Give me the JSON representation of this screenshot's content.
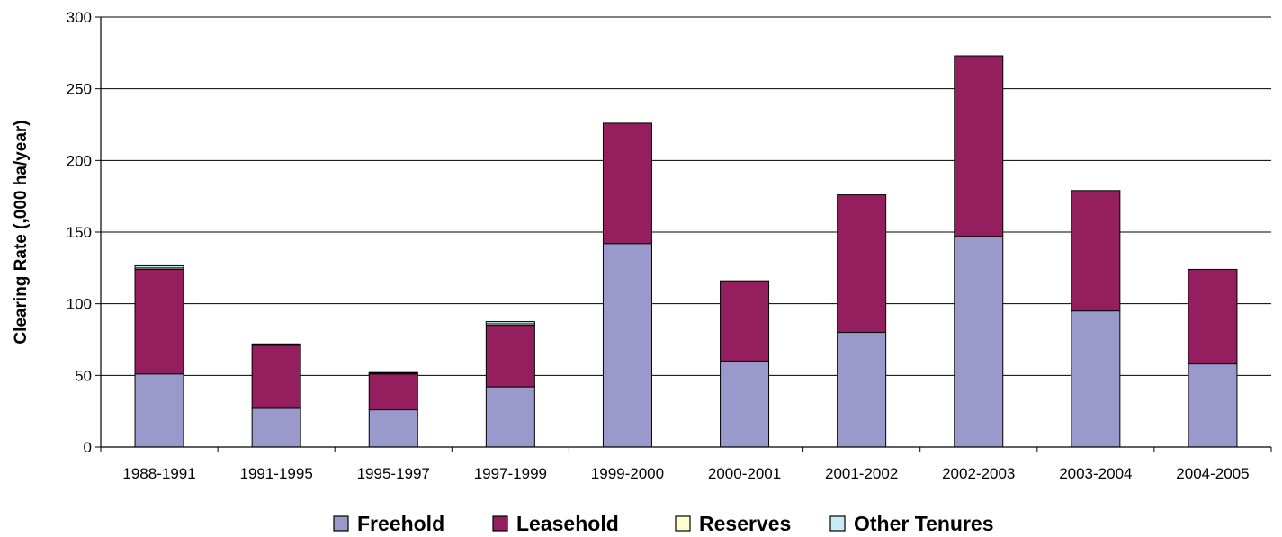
{
  "chart_data": {
    "type": "bar",
    "stacked": true,
    "title": "",
    "xlabel": "",
    "ylabel": "Clearing Rate (,000 ha/year)",
    "ylim": [
      0,
      300
    ],
    "yticks": [
      0,
      50,
      100,
      150,
      200,
      250,
      300
    ],
    "grid": "horizontal",
    "legend_position": "bottom",
    "categories": [
      "1988-1991",
      "1991-1995",
      "1995-1997",
      "1997-1999",
      "1999-2000",
      "2000-2001",
      "2001-2002",
      "2002-2003",
      "2003-2004",
      "2004-2005"
    ],
    "series": [
      {
        "name": "Freehold",
        "color": "#9999cc",
        "values": [
          51,
          27,
          26,
          42,
          142,
          60,
          80,
          147,
          95,
          58
        ]
      },
      {
        "name": "Leasehold",
        "color": "#951f5e",
        "values": [
          73,
          44,
          25,
          43,
          84,
          56,
          96,
          126,
          84,
          66
        ]
      },
      {
        "name": "Reserves",
        "color": "#ffffcc",
        "values": [
          1,
          0.5,
          0.5,
          1,
          0,
          0,
          0,
          0,
          0,
          0
        ]
      },
      {
        "name": "Other Tenures",
        "color": "#c6ecf5",
        "values": [
          1.5,
          0.5,
          0.5,
          1.5,
          0,
          0,
          0,
          0,
          0,
          0
        ]
      }
    ]
  }
}
